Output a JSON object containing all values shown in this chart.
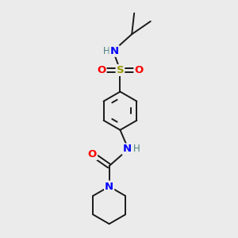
{
  "background_color": "#ebebeb",
  "atom_colors": {
    "C": "#000000",
    "H": "#4a8080",
    "N": "#0000ff",
    "O": "#ff0000",
    "S": "#999900"
  },
  "bond_color": "#1a1a1a",
  "bond_width": 1.4,
  "figsize": [
    3.0,
    3.0
  ],
  "dpi": 100,
  "xlim": [
    0,
    10
  ],
  "ylim": [
    0,
    10
  ]
}
